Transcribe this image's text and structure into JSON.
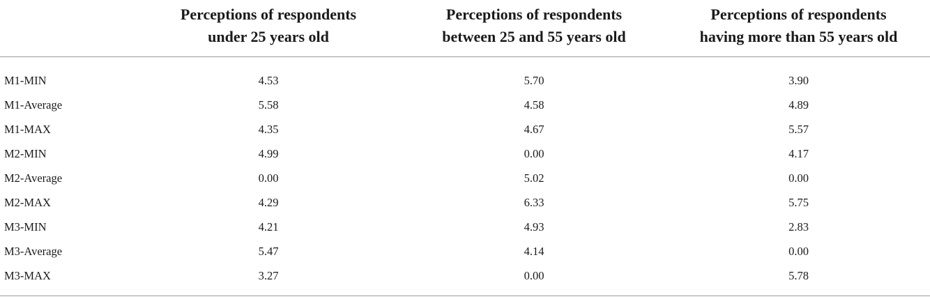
{
  "headers": [
    "",
    [
      "Perceptions of respondents",
      "under 25 years old"
    ],
    [
      "Perceptions of respondents",
      "between 25 and 55 years old"
    ],
    [
      "Perceptions of respondents",
      "having more than 55 years old"
    ]
  ],
  "rows": [
    {
      "label": "M1-MIN",
      "values": [
        "4.53",
        "5.70",
        "3.90"
      ]
    },
    {
      "label": "M1-Average",
      "values": [
        "5.58",
        "4.58",
        "4.89"
      ]
    },
    {
      "label": "M1-MAX",
      "values": [
        "4.35",
        "4.67",
        "5.57"
      ]
    },
    {
      "label": "M2-MIN",
      "values": [
        "4.99",
        "0.00",
        "4.17"
      ]
    },
    {
      "label": "M2-Average",
      "values": [
        "0.00",
        "5.02",
        "0.00"
      ]
    },
    {
      "label": "M2-MAX",
      "values": [
        "4.29",
        "6.33",
        "5.75"
      ]
    },
    {
      "label": "M3-MIN",
      "values": [
        "4.21",
        "4.93",
        "2.83"
      ]
    },
    {
      "label": "M3-Average",
      "values": [
        "5.47",
        "4.14",
        "0.00"
      ]
    },
    {
      "label": "M3-MAX",
      "values": [
        "3.27",
        "0.00",
        "5.78"
      ]
    }
  ]
}
